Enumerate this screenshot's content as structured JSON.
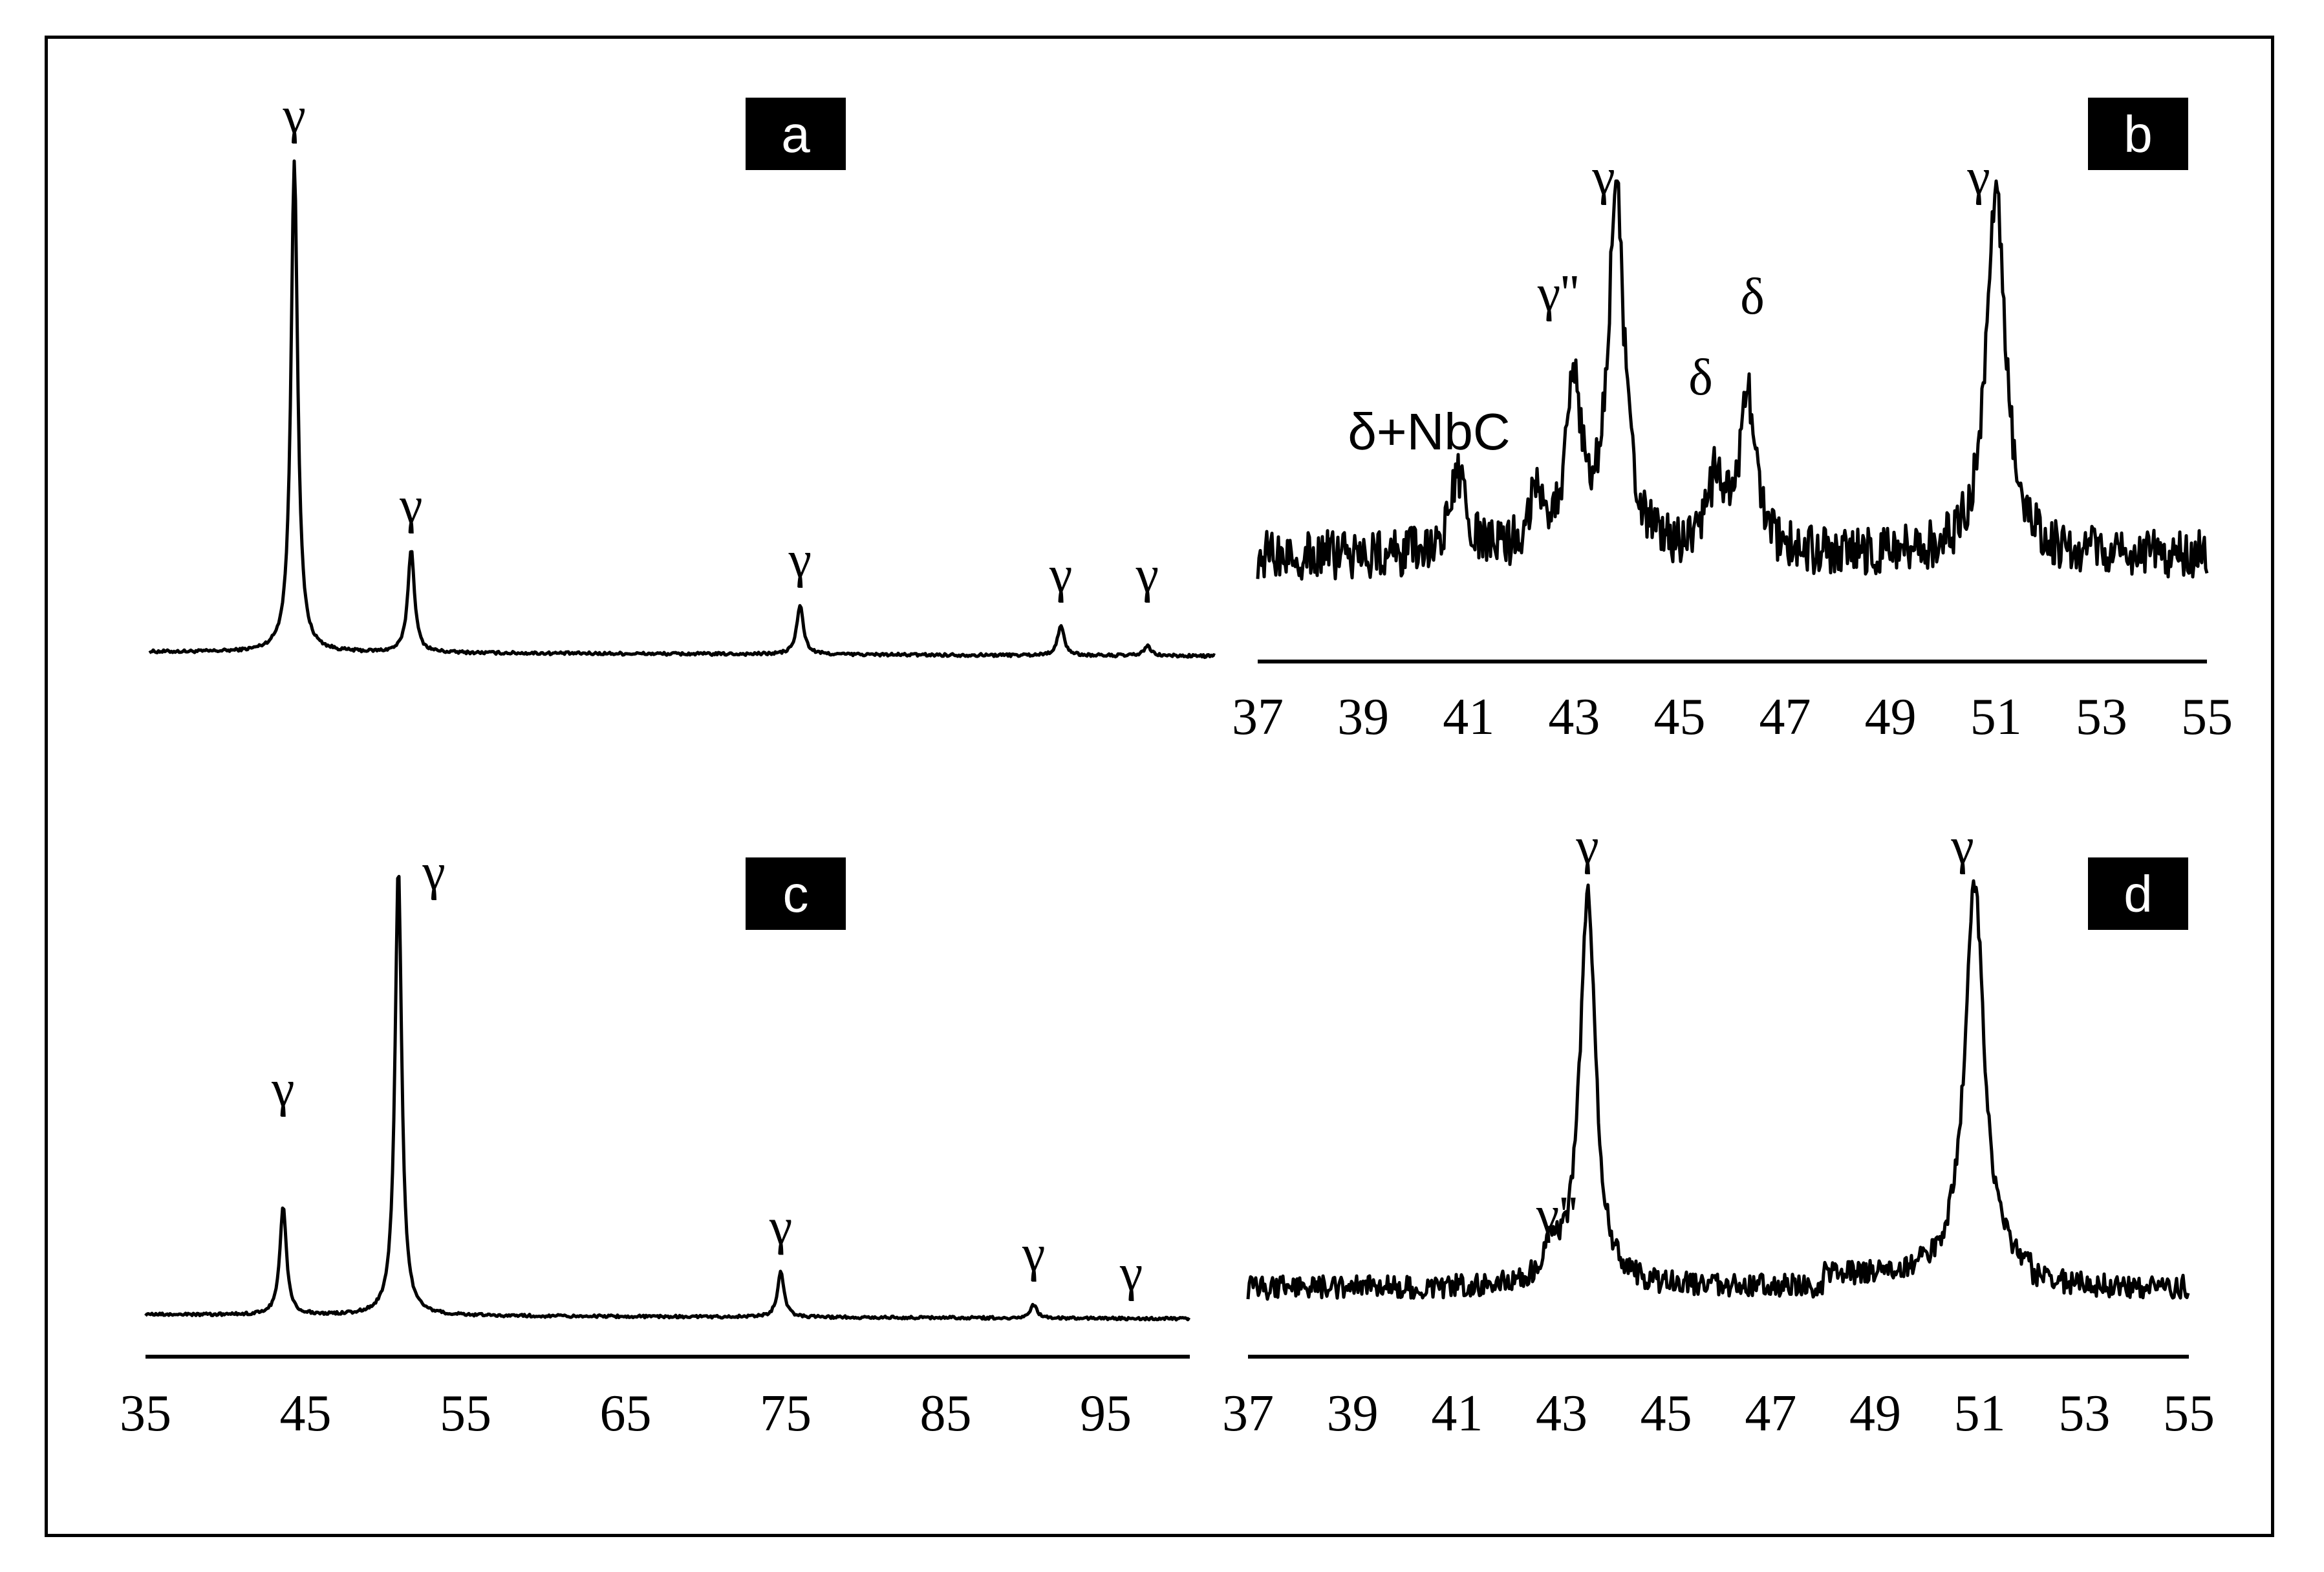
{
  "figure": {
    "colors": {
      "ink": "#000000",
      "background": "#ffffff",
      "label_box": "#000000",
      "label_text": "#ffffff"
    }
  },
  "chart_data": [
    {
      "panel": "a",
      "type": "line",
      "title": "",
      "xlabel": "",
      "ylabel": "",
      "xlim": [
        35,
        100
      ],
      "x_ticks_shown": false,
      "baseline": 2,
      "peaks": [
        {
          "x": 44.3,
          "height": 100,
          "label": "γ"
        },
        {
          "x": 51.6,
          "height": 21,
          "label": "γ"
        },
        {
          "x": 75.9,
          "height": 10,
          "label": "γ"
        },
        {
          "x": 92.2,
          "height": 6,
          "label": "γ"
        },
        {
          "x": 97.6,
          "height": 2,
          "label": "γ"
        }
      ]
    },
    {
      "panel": "b",
      "type": "line",
      "title": "",
      "xlabel": "",
      "ylabel": "",
      "xlim": [
        37,
        55
      ],
      "x_ticks": [
        "37",
        "39",
        "41",
        "43",
        "45",
        "47",
        "49",
        "51",
        "53",
        "55"
      ],
      "noise_level": 18,
      "peaks": [
        {
          "x": 40.8,
          "height": 28,
          "label": "δ+NbC"
        },
        {
          "x": 42.3,
          "height": 22,
          "label": ""
        },
        {
          "x": 43.0,
          "height": 60,
          "label": "γ''"
        },
        {
          "x": 43.8,
          "height": 135,
          "label": "γ"
        },
        {
          "x": 45.7,
          "height": 27,
          "label": "δ"
        },
        {
          "x": 46.3,
          "height": 58,
          "label": "δ"
        },
        {
          "x": 51.0,
          "height": 135,
          "label": "γ"
        }
      ]
    },
    {
      "panel": "c",
      "type": "line",
      "title": "",
      "xlabel": "",
      "ylabel": "",
      "xlim": [
        35,
        100
      ],
      "x_ticks": [
        "35",
        "45",
        "55",
        "65",
        "75",
        "85",
        "95"
      ],
      "baseline": 2,
      "peaks": [
        {
          "x": 43.6,
          "height": 24,
          "label": "γ"
        },
        {
          "x": 50.8,
          "height": 100,
          "label": "γ"
        },
        {
          "x": 74.7,
          "height": 10,
          "label": "γ"
        },
        {
          "x": 90.5,
          "height": 3,
          "label": "γ"
        },
        {
          "x": 96.6,
          "height": 0,
          "label": "γ"
        }
      ]
    },
    {
      "panel": "d",
      "type": "line",
      "title": "",
      "xlabel": "",
      "ylabel": "",
      "xlim": [
        37,
        55
      ],
      "x_ticks": [
        "37",
        "39",
        "41",
        "43",
        "45",
        "47",
        "49",
        "51",
        "53",
        "55"
      ],
      "noise_level": 8,
      "peaks": [
        {
          "x": 42.8,
          "height": 10,
          "label": "γ''"
        },
        {
          "x": 43.5,
          "height": 135,
          "label": "γ"
        },
        {
          "x": 50.9,
          "height": 135,
          "label": "γ"
        }
      ]
    }
  ]
}
